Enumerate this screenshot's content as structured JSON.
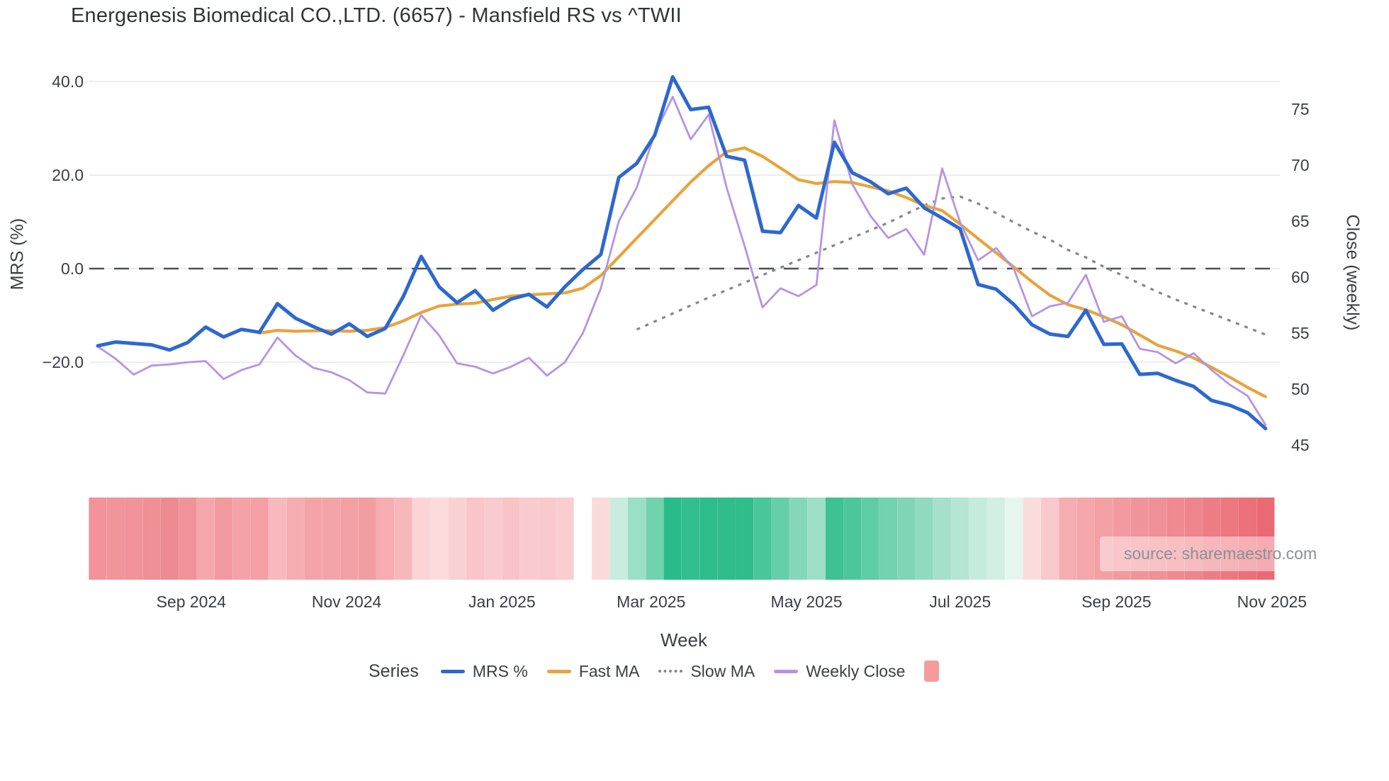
{
  "title": "Energenesis Biomedical CO.,LTD. (6657) - Mansfield RS vs ^TWII",
  "source_label": "source: sharemaestro.com",
  "legend_title": "Series",
  "colors": {
    "mrs_blue": "#2e68cf",
    "fast_ma_orange": "#e7a33c",
    "slow_ma_gray": "#83878e",
    "weekly_close_purple": "#b494e3",
    "zero_dash": "#4d5157",
    "gridline": "#ecedf1",
    "heat_legend_swatch": "#f49c9c",
    "text": "#3a3f45"
  },
  "chart_data": {
    "type": "line",
    "title": "Energenesis Biomedical CO.,LTD. (6657) - Mansfield RS vs ^TWII",
    "x_axis": {
      "label": "Week",
      "ticks": [
        {
          "label": "Sep 2024",
          "week": 5.2
        },
        {
          "label": "Nov 2024",
          "week": 13.85
        },
        {
          "label": "Jan 2025",
          "week": 22.5
        },
        {
          "label": "Mar 2025",
          "week": 30.8
        },
        {
          "label": "May 2025",
          "week": 39.45
        },
        {
          "label": "Jul 2025",
          "week": 48.0
        },
        {
          "label": "Sep 2025",
          "week": 56.7
        },
        {
          "label": "Nov 2025",
          "week": 65.36
        }
      ],
      "n_weeks": 66
    },
    "y_left": {
      "label": "MRS (%)",
      "tick_values": [
        40,
        20,
        0,
        -20
      ],
      "tick_labels": [
        "40.0",
        "20.0",
        "0.0",
        "−20.0"
      ]
    },
    "y_right": {
      "label": "Close (weekly)",
      "tick_values": [
        75,
        70,
        65,
        60,
        55,
        50,
        45
      ],
      "tick_labels": [
        "75",
        "70",
        "65",
        "60",
        "55",
        "50",
        "45"
      ]
    },
    "zero_reference_line": {
      "axis": "left",
      "value": 0,
      "style": "dashed"
    },
    "legend_position": "bottom",
    "grid": "horizontal-left-ticks",
    "series": [
      {
        "name": "MRS %",
        "axis": "left",
        "color": "#2e68cf",
        "style": "solid",
        "width": 5,
        "start_week": 0,
        "values": [
          -16.5,
          -15.7,
          -16,
          -16.3,
          -17.4,
          -15.8,
          -12.5,
          -14.6,
          -13,
          -13.6,
          -7.5,
          -10.6,
          -12.4,
          -14,
          -11.8,
          -14.5,
          -12.8,
          -6,
          2.6,
          -3.9,
          -7.3,
          -4.7,
          -8.9,
          -6.5,
          -5.5,
          -8.2,
          -3.9,
          -0.2,
          3,
          19.5,
          22.5,
          28.5,
          41,
          34,
          34.5,
          24,
          23.2,
          8,
          7.7,
          13.5,
          10.8,
          27,
          20.5,
          18.6,
          16,
          17.2,
          13,
          10.8,
          8.5,
          -3.4,
          -4.4,
          -7.7,
          -12,
          -14,
          -14.5,
          -8.9,
          -16.2,
          -16.1,
          -22.6,
          -22.4,
          -23.9,
          -25.2,
          -28.2,
          -29.2,
          -30.8,
          -34.2
        ]
      },
      {
        "name": "Fast MA",
        "axis": "left",
        "color": "#e7a33c",
        "style": "solid",
        "width": 4.2,
        "start_week": 9,
        "values": [
          -13.8,
          -13.2,
          -13.4,
          -13.3,
          -13.3,
          -13.4,
          -13.2,
          -12.6,
          -11.2,
          -9.4,
          -8,
          -7.6,
          -7.4,
          -6.6,
          -5.9,
          -5.6,
          -5.4,
          -5.2,
          -4.2,
          -1.5,
          2.5,
          6.5,
          10.5,
          14.5,
          18.5,
          22,
          25,
          25.8,
          24,
          21.5,
          19,
          18.2,
          18.6,
          18.4,
          17.5,
          16.6,
          15.2,
          13.5,
          12.4,
          9.5,
          6.4,
          3.4,
          0.3,
          -2.8,
          -5.7,
          -7.7,
          -8.8,
          -10.3,
          -12,
          -14.2,
          -16.4,
          -17.6,
          -19.1,
          -21.1,
          -23.2,
          -25.4,
          -27.4
        ]
      },
      {
        "name": "Slow MA",
        "axis": "left",
        "color": "#83878e",
        "style": "dotted",
        "width": 3.2,
        "start_week": 30,
        "values": [
          -13,
          -11.3,
          -9.6,
          -7.9,
          -6.2,
          -4.6,
          -3,
          -1.4,
          0.2,
          1.8,
          3.4,
          5,
          6.6,
          8.2,
          9.8,
          11.7,
          13.5,
          15,
          15.4,
          13.9,
          11.9,
          9.9,
          7.9,
          6.2,
          4,
          2.4,
          0.4,
          -1.4,
          -3.2,
          -5,
          -6.6,
          -8.1,
          -9.6,
          -11.1,
          -12.6,
          -14.1
        ]
      },
      {
        "name": "Weekly Close",
        "axis": "right",
        "color": "#b494e3",
        "style": "solid",
        "width": 2.8,
        "start_week": 0,
        "values": [
          53.8,
          52.7,
          51.3,
          52.1,
          52.2,
          52.4,
          52.5,
          50.9,
          51.7,
          52.2,
          54.6,
          53,
          51.9,
          51.5,
          50.8,
          49.7,
          49.6,
          53,
          56.6,
          54.8,
          52.3,
          52,
          51.4,
          52,
          52.8,
          51.2,
          52.4,
          55,
          59,
          65,
          68,
          72.8,
          76.1,
          72.3,
          74.5,
          68,
          62.8,
          57.3,
          59,
          58.3,
          59.3,
          74,
          68.3,
          65.5,
          63.5,
          64.3,
          62,
          69.7,
          64.9,
          61.5,
          62.6,
          60.7,
          56.5,
          57.4,
          57.7,
          60.2,
          56,
          56.5,
          53.6,
          53.3,
          52.3,
          53.2,
          51.7,
          50.4,
          49.4,
          46.8
        ]
      }
    ],
    "heatmap_strip": {
      "description": "weekly relative-strength heat cells under chart, one per week, white gap at week 27",
      "cell_colors": [
        "#f19399",
        "#f1959b",
        "#f0939a",
        "#ef8f96",
        "#ee8b92",
        "#f09299",
        "#f5a6ab",
        "#f2999f",
        "#f4a2a7",
        "#f39fa5",
        "#f8b9bc",
        "#f6adb1",
        "#f4a4a9",
        "#f4a3a8",
        "#f3a0a5",
        "#f29da2",
        "#f6acb0",
        "#f8b8bb",
        "#fcd4d5",
        "#fbdbdc",
        "#fad1d3",
        "#f9c5c8",
        "#f9cbce",
        "#f8c4c7",
        "#f9cbce",
        "#f9c9cc",
        "#facdd0",
        null,
        "#fbdada",
        "#c8ecdd",
        "#9adfc6",
        "#72d2ae",
        "#2abb8a",
        "#32be8e",
        "#2dbc8b",
        "#2fbd8b",
        "#2fbd8b",
        "#49c69a",
        "#66cfaa",
        "#85d7b9",
        "#9cdec6",
        "#3ec293",
        "#4cc79b",
        "#5fcda5",
        "#73d2af",
        "#7fd5b5",
        "#90dabf",
        "#a6e0cc",
        "#b5e5d3",
        "#c5ebdc",
        "#d3efe4",
        "#e6f6ee",
        "#fbdcdc",
        "#f9c9cb",
        "#f5adb2",
        "#f4a6ab",
        "#f3a0a5",
        "#f29aa0",
        "#f0949b",
        "#f09097",
        "#ef8a91",
        "#ee858c",
        "#ed7d85",
        "#ec777f",
        "#eb7079",
        "#ea6a74"
      ]
    }
  }
}
